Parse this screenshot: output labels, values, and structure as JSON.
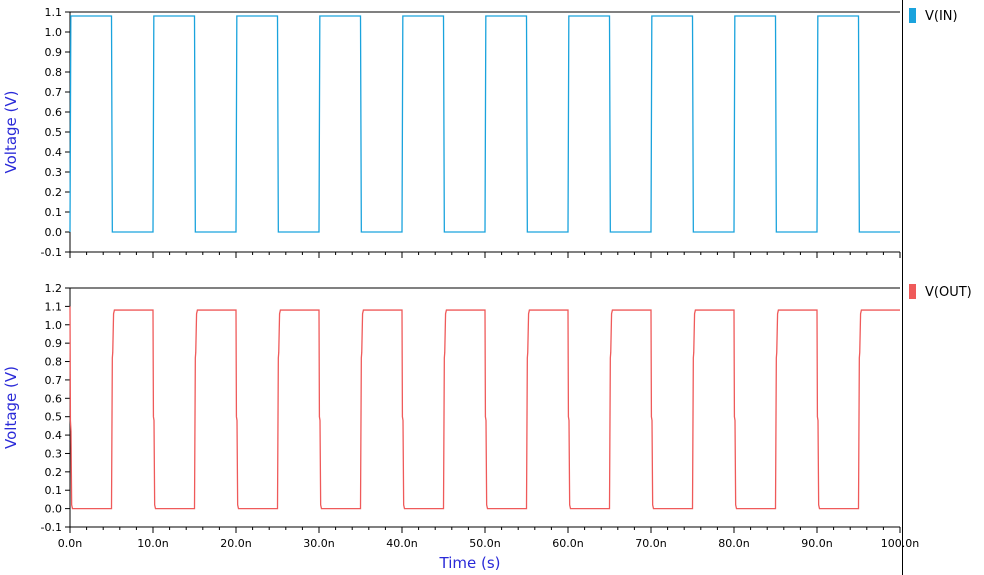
{
  "chart_data": [
    {
      "type": "line",
      "ylabel": "Voltage (V)",
      "xlabel": "",
      "ylim": [
        -0.1,
        1.1
      ],
      "yticks": [
        "-0.1",
        "0.0",
        "0.1",
        "0.2",
        "0.3",
        "0.4",
        "0.5",
        "0.6",
        "0.7",
        "0.8",
        "0.9",
        "1.0",
        "1.1"
      ],
      "xlim": [
        0,
        100
      ],
      "grid": false,
      "legend_position": "top-right",
      "series": [
        {
          "name": "V(IN)",
          "color": "#1aa3dd",
          "x": [
            0,
            0.1,
            5,
            5.1,
            10,
            10.1,
            15,
            15.1,
            20,
            20.1,
            25,
            25.1,
            30,
            30.1,
            35,
            35.1,
            40,
            40.1,
            45,
            45.1,
            50,
            50.1,
            55,
            55.1,
            60,
            60.1,
            65,
            65.1,
            70,
            70.1,
            75,
            75.1,
            80,
            80.1,
            85,
            85.1,
            90,
            90.1,
            95,
            95.1,
            100
          ],
          "y": [
            0,
            1.08,
            1.08,
            0,
            0,
            1.08,
            1.08,
            0,
            0,
            1.08,
            1.08,
            0,
            0,
            1.08,
            1.08,
            0,
            0,
            1.08,
            1.08,
            0,
            0,
            1.08,
            1.08,
            0,
            0,
            1.08,
            1.08,
            0,
            0,
            1.08,
            1.08,
            0,
            0,
            1.08,
            1.08,
            0,
            0,
            1.08,
            1.08,
            0,
            0
          ]
        }
      ]
    },
    {
      "type": "line",
      "ylabel": "Voltage (V)",
      "xlabel": "Time (s)",
      "ylim": [
        -0.1,
        1.2
      ],
      "yticks": [
        "-0.1",
        "0.0",
        "0.1",
        "0.2",
        "0.3",
        "0.4",
        "0.5",
        "0.6",
        "0.7",
        "0.8",
        "0.9",
        "1.0",
        "1.1",
        "1.2"
      ],
      "xlim": [
        0,
        100
      ],
      "xticks": [
        "0.0n",
        "10.0n",
        "20.0n",
        "30.0n",
        "40.0n",
        "50.0n",
        "60.0n",
        "70.0n",
        "80.0n",
        "90.0n",
        "100.0n"
      ],
      "grid": false,
      "legend_position": "top-right",
      "series": [
        {
          "name": "V(OUT)",
          "color": "#ef5a5a",
          "x": [
            0,
            0.05,
            0.12,
            0.2,
            0.3,
            5,
            5.1,
            5.15,
            5.25,
            5.35,
            10,
            10.05,
            10.12,
            10.2,
            10.3,
            15,
            15.1,
            15.15,
            15.25,
            15.35,
            20,
            20.05,
            20.12,
            20.2,
            20.3,
            25,
            25.1,
            25.15,
            25.25,
            25.35,
            30,
            30.05,
            30.12,
            30.2,
            30.3,
            35,
            35.1,
            35.15,
            35.25,
            35.35,
            40,
            40.05,
            40.12,
            40.2,
            40.3,
            45,
            45.1,
            45.15,
            45.25,
            45.35,
            50,
            50.05,
            50.12,
            50.2,
            50.3,
            55,
            55.1,
            55.15,
            55.25,
            55.35,
            60,
            60.05,
            60.12,
            60.2,
            60.3,
            65,
            65.1,
            65.15,
            65.25,
            65.35,
            70,
            70.05,
            70.12,
            70.2,
            70.3,
            75,
            75.1,
            75.15,
            75.25,
            75.35,
            80,
            80.05,
            80.12,
            80.2,
            80.3,
            85,
            85.1,
            85.15,
            85.25,
            85.35,
            90,
            90.05,
            90.12,
            90.2,
            90.3,
            95,
            95.1,
            95.15,
            95.25,
            95.35,
            100
          ],
          "y": [
            1.1,
            0.48,
            0.42,
            0.02,
            0,
            0,
            0.82,
            0.85,
            1.06,
            1.08,
            1.08,
            0.5,
            0.48,
            0.02,
            0,
            0,
            0.82,
            0.85,
            1.06,
            1.08,
            1.08,
            0.5,
            0.48,
            0.02,
            0,
            0,
            0.82,
            0.85,
            1.06,
            1.08,
            1.08,
            0.5,
            0.48,
            0.02,
            0,
            0,
            0.82,
            0.85,
            1.06,
            1.08,
            1.08,
            0.5,
            0.48,
            0.02,
            0,
            0,
            0.82,
            0.85,
            1.06,
            1.08,
            1.08,
            0.5,
            0.48,
            0.02,
            0,
            0,
            0.82,
            0.85,
            1.06,
            1.08,
            1.08,
            0.5,
            0.48,
            0.02,
            0,
            0,
            0.82,
            0.85,
            1.06,
            1.08,
            1.08,
            0.5,
            0.48,
            0.02,
            0,
            0,
            0.82,
            0.85,
            1.06,
            1.08,
            1.08,
            0.5,
            0.48,
            0.02,
            0,
            0,
            0.82,
            0.85,
            1.06,
            1.08,
            1.08,
            0.5,
            0.48,
            0.02,
            0,
            0,
            0.82,
            0.85,
            1.06,
            1.08,
            1.08
          ]
        }
      ]
    }
  ]
}
